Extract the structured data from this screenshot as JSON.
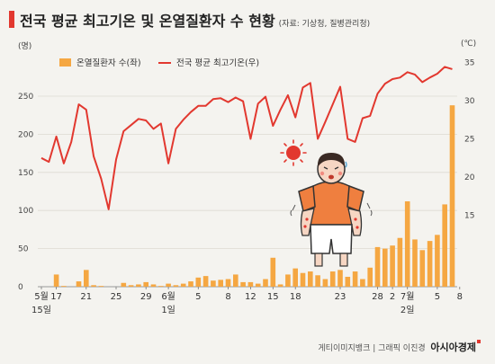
{
  "header": {
    "title": "전국 평균 최고기온 및 온열질환자 수 현황",
    "source": "(자료: 기상청, 질병관리청)"
  },
  "credit": {
    "text": "게티이미지뱅크 | 그래픽 이진경",
    "brand": "아시아경제"
  },
  "chart_data": {
    "type": "bar+line",
    "y_left_unit": "(명)",
    "y_right_unit": "(℃)",
    "y_left_ticks": [
      0,
      50,
      100,
      150,
      200,
      250
    ],
    "y_right_ticks": [
      15,
      20,
      25,
      30,
      35
    ],
    "ylim_left": [
      0,
      250
    ],
    "ylim_right": [
      5.7,
      35.5
    ],
    "x_tick_labels": [
      {
        "day": 0,
        "label": "5월",
        "sub": "15일"
      },
      {
        "day": 2,
        "label": "17"
      },
      {
        "day": 6,
        "label": "21"
      },
      {
        "day": 10,
        "label": "25"
      },
      {
        "day": 14,
        "label": "29"
      },
      {
        "day": 17,
        "label": "6월",
        "sub": "1일"
      },
      {
        "day": 21,
        "label": "5"
      },
      {
        "day": 25,
        "label": "8"
      },
      {
        "day": 28,
        "label": "12"
      },
      {
        "day": 31,
        "label": "15"
      },
      {
        "day": 34,
        "label": "18"
      },
      {
        "day": 40,
        "label": "23"
      },
      {
        "day": 45,
        "label": "28"
      },
      {
        "day": 47,
        "label": "2"
      },
      {
        "day": 49,
        "label": "7월",
        "sub": "2일"
      },
      {
        "day": 53,
        "label": "5"
      },
      {
        "day": 56,
        "label": "8"
      }
    ],
    "series": [
      {
        "name": "온열질환자 수(좌)",
        "type": "bar",
        "axis": "left",
        "color": "#f5a742",
        "values": [
          0,
          0,
          16,
          1,
          0,
          7,
          22,
          2,
          1,
          0,
          0,
          5,
          2,
          3,
          6,
          3,
          1,
          4,
          2,
          4,
          7,
          12,
          14,
          8,
          9,
          10,
          16,
          6,
          6,
          4,
          10,
          38,
          3,
          16,
          24,
          18,
          20,
          15,
          10,
          20,
          22,
          13,
          20,
          10,
          25,
          52,
          50,
          54,
          64,
          112,
          62,
          48,
          60,
          68,
          108,
          238
        ]
      },
      {
        "name": "전국 평균 최고기온(우)",
        "type": "line",
        "axis": "right",
        "color": "#e2382f",
        "values": [
          22.5,
          22.0,
          25.3,
          21.8,
          24.6,
          29.5,
          28.8,
          22.7,
          19.8,
          15.8,
          22.3,
          26.0,
          26.8,
          27.6,
          27.4,
          26.3,
          27.0,
          21.8,
          26.3,
          27.5,
          28.5,
          29.3,
          29.3,
          30.2,
          30.3,
          29.8,
          30.4,
          29.9,
          25.0,
          29.6,
          30.5,
          26.7,
          28.8,
          30.7,
          27.8,
          31.7,
          32.3,
          25.0,
          27.2,
          29.5,
          31.8,
          25.0,
          24.6,
          27.7,
          28.0,
          30.9,
          32.2,
          32.8,
          33.0,
          33.7,
          33.4,
          32.4,
          33.0,
          33.5,
          34.4,
          34.1
        ]
      }
    ]
  }
}
